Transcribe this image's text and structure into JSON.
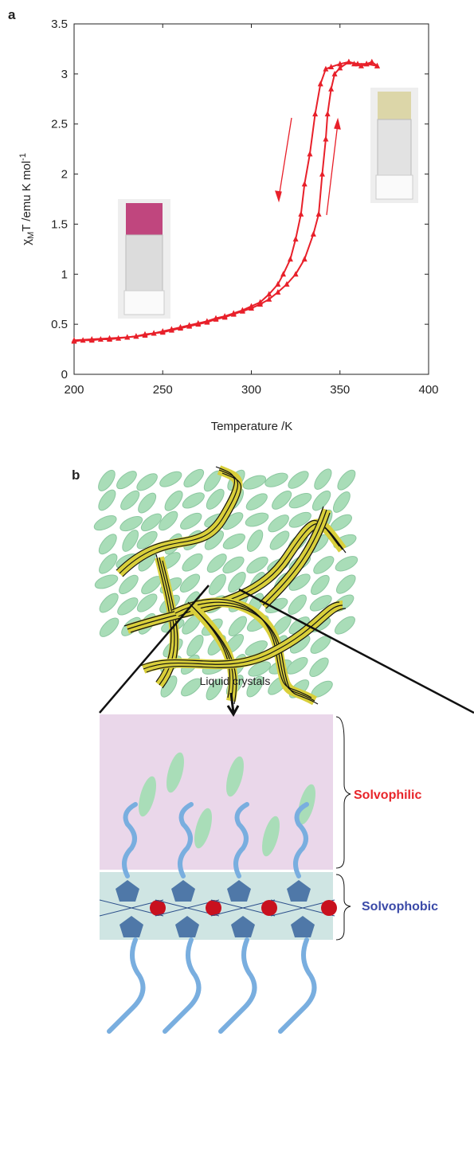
{
  "panel_labels": [
    "a",
    "b"
  ],
  "chart_data": {
    "type": "line",
    "xlabel": "Temperature /K",
    "ylabel": [
      "χ",
      "M",
      "T /emu K mol",
      "-1"
    ],
    "xlim": [
      200,
      400
    ],
    "xticks": [
      200,
      250,
      300,
      350,
      400
    ],
    "ylim": [
      0,
      3.5
    ],
    "yticks": [
      0,
      0.5,
      1,
      1.5,
      2,
      2.5,
      3,
      3.5
    ],
    "grid": false,
    "marker": "triangle",
    "series": [
      {
        "color": "#e8202a",
        "x": [
          200,
          205,
          210,
          215,
          220,
          225,
          230,
          235,
          240,
          245,
          250,
          255,
          260,
          265,
          270,
          275,
          280,
          285,
          290,
          295,
          300,
          305,
          310,
          315,
          320,
          325,
          330,
          335,
          338,
          340,
          342,
          343,
          345,
          347,
          350,
          355,
          358,
          362,
          365,
          368,
          371
        ],
        "values": [
          0.33,
          0.34,
          0.34,
          0.35,
          0.35,
          0.36,
          0.37,
          0.38,
          0.39,
          0.41,
          0.42,
          0.44,
          0.46,
          0.48,
          0.5,
          0.52,
          0.55,
          0.57,
          0.6,
          0.63,
          0.66,
          0.7,
          0.75,
          0.82,
          0.9,
          1.0,
          1.15,
          1.4,
          1.6,
          2.0,
          2.35,
          2.6,
          2.85,
          3.0,
          3.06,
          3.12,
          3.1,
          3.08,
          3.1,
          3.12,
          3.08
        ]
      },
      {
        "color": "#e8202a",
        "x": [
          371,
          365,
          360,
          355,
          350,
          345,
          342,
          339,
          336,
          333,
          330,
          328,
          325,
          322,
          318,
          315,
          310,
          305,
          300,
          295,
          290,
          285,
          280,
          275,
          270,
          265,
          260,
          255,
          250,
          245,
          240,
          235,
          230,
          220,
          210,
          200
        ],
        "values": [
          3.08,
          3.1,
          3.1,
          3.12,
          3.1,
          3.07,
          3.05,
          2.9,
          2.6,
          2.2,
          1.9,
          1.6,
          1.35,
          1.15,
          1.0,
          0.9,
          0.8,
          0.72,
          0.68,
          0.64,
          0.61,
          0.58,
          0.56,
          0.53,
          0.51,
          0.49,
          0.47,
          0.45,
          0.43,
          0.41,
          0.4,
          0.38,
          0.37,
          0.36,
          0.35,
          0.34
        ]
      }
    ]
  },
  "diagram": {
    "arrow_label": "Liquid crystals",
    "upper_layer": "Solvophilic",
    "lower_layer": "Solvophobic"
  }
}
